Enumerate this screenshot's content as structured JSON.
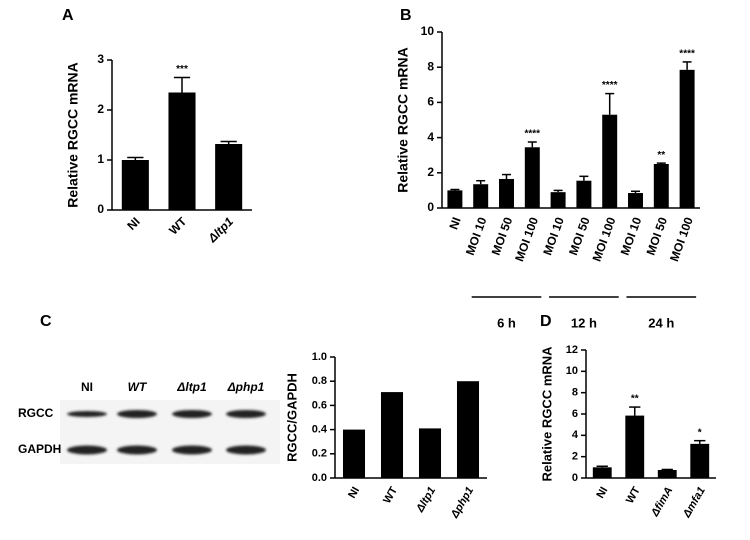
{
  "chart_data": [
    {
      "type": "bar",
      "panel_label": "A",
      "ylabel": "Relative RGCC mRNA",
      "categories": [
        "NI",
        "WT",
        "Δltp1"
      ],
      "values": [
        1.0,
        2.35,
        1.32
      ],
      "errors": [
        0.05,
        0.3,
        0.05
      ],
      "significance": [
        null,
        "***",
        null
      ],
      "color": "#000000",
      "ylim": [
        0,
        3
      ],
      "yticks": [
        0,
        1,
        2,
        3
      ]
    },
    {
      "type": "bar",
      "panel_label": "B",
      "ylabel": "Relative RGCC mRNA",
      "categories": [
        "NI",
        "MOI 10",
        "MOI 50",
        "MOI 100",
        "MOI 10",
        "MOI 50",
        "MOI 100",
        "MOI 10",
        "MOI 50",
        "MOI 100"
      ],
      "values": [
        1.0,
        1.35,
        1.65,
        3.45,
        0.9,
        1.55,
        5.3,
        0.85,
        2.5,
        7.85
      ],
      "errors": [
        0.05,
        0.2,
        0.25,
        0.3,
        0.1,
        0.25,
        1.2,
        0.1,
        0.05,
        0.45
      ],
      "significance": [
        null,
        null,
        null,
        "****",
        null,
        null,
        "****",
        null,
        "**",
        "****"
      ],
      "groups": [
        "6 h",
        "12 h",
        "24 h"
      ],
      "color": "#000000",
      "ylim": [
        0,
        10
      ],
      "yticks": [
        0,
        2,
        4,
        6,
        8,
        10
      ]
    },
    {
      "type": "bar",
      "panel_label": "C",
      "ylabel": "RGCC/GAPDH",
      "categories": [
        "NI",
        "WT",
        "Δltp1",
        "Δphp1"
      ],
      "values": [
        0.4,
        0.71,
        0.41,
        0.8
      ],
      "color": "#000000",
      "ylim": [
        0,
        1
      ],
      "yticks": [
        {
          "value": 0,
          "label": "0.0"
        },
        0.2,
        0.4,
        0.6,
        0.8,
        {
          "value": 1,
          "label": "1.0"
        }
      ]
    },
    {
      "type": "bar",
      "panel_label": "D",
      "ylabel": "Relative RGCC mRNA",
      "categories": [
        "NI",
        "WT",
        "ΔfimA",
        "Δmfa1"
      ],
      "values": [
        1.0,
        5.85,
        0.75,
        3.2
      ],
      "errors": [
        0.1,
        0.8,
        0.05,
        0.3
      ],
      "significance": [
        null,
        "**",
        null,
        "*"
      ],
      "color": "#000000",
      "ylim": [
        0,
        12
      ],
      "yticks": [
        0,
        2,
        4,
        6,
        8,
        10,
        12
      ]
    }
  ],
  "blot": {
    "lanes": [
      "NI",
      "WT",
      "Δltp1",
      "Δphp1"
    ],
    "bands": [
      "RGCC",
      "GAPDH"
    ]
  }
}
